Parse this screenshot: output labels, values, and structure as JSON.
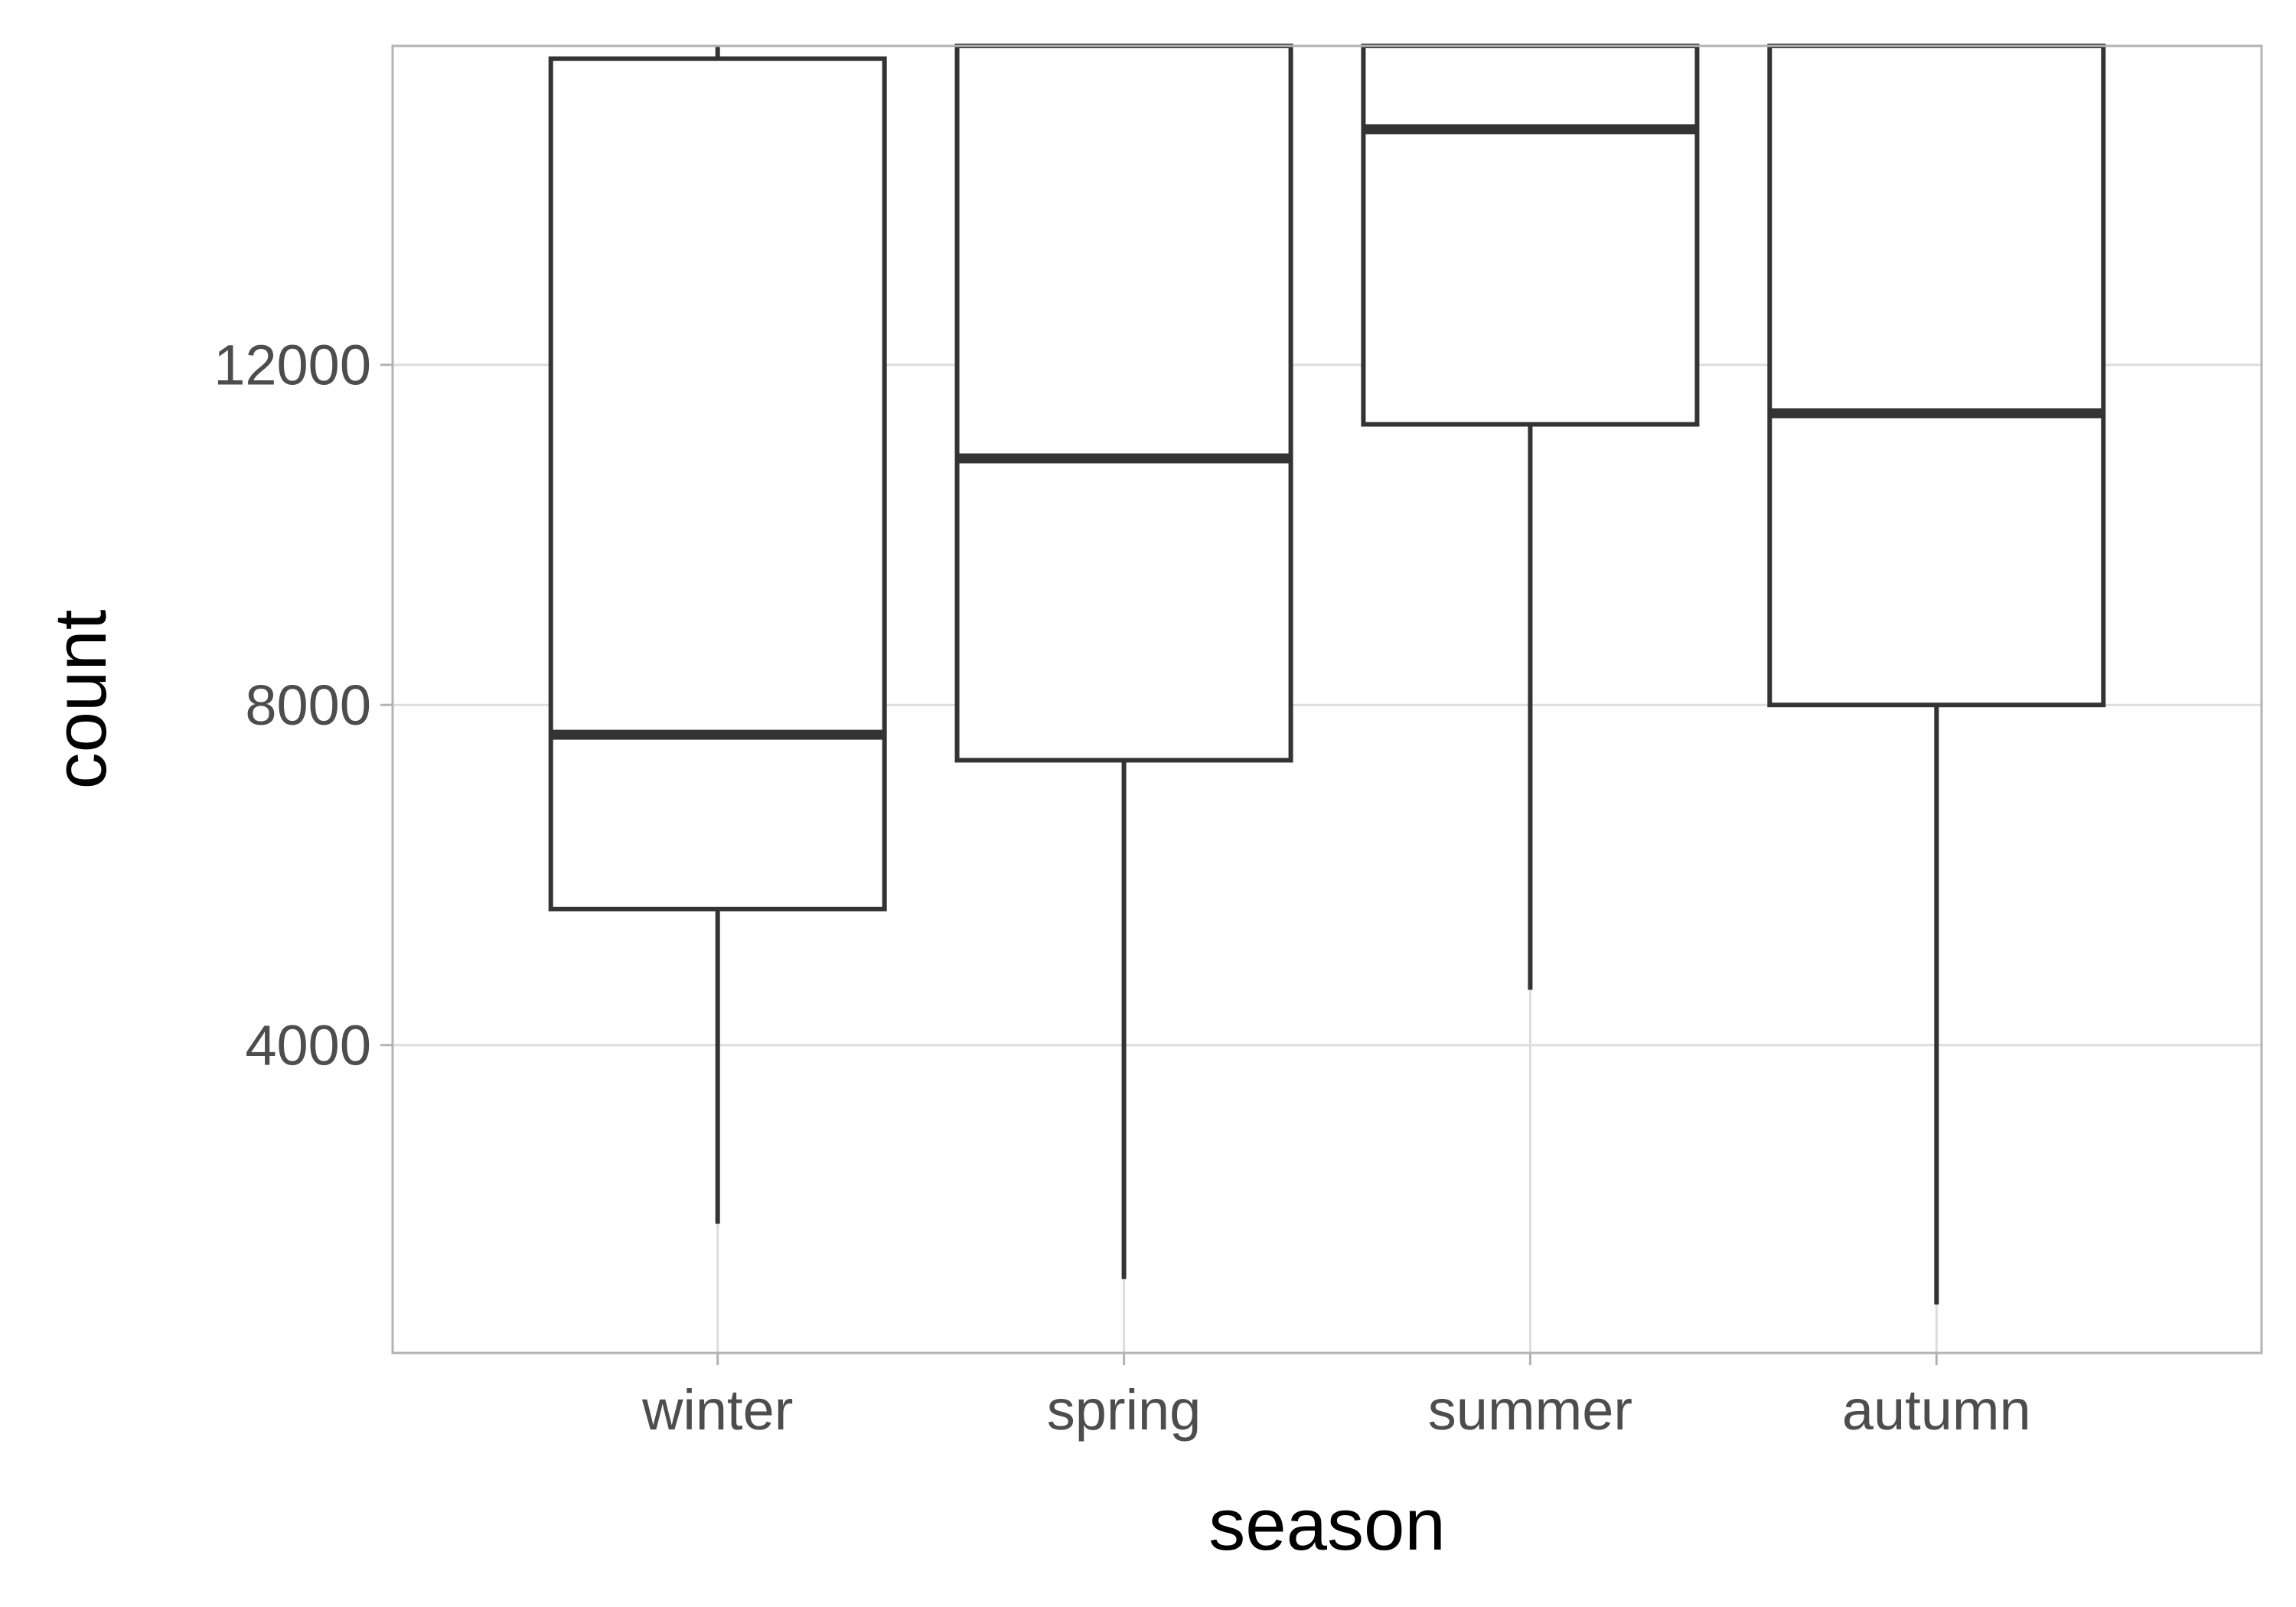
{
  "chart_data": {
    "type": "boxplot",
    "xlabel": "season",
    "ylabel": "count",
    "categories": [
      "winter",
      "spring",
      "summer",
      "autumn"
    ],
    "ylim": [
      380,
      15750
    ],
    "yticks": [
      4000,
      8000,
      12000
    ],
    "ytick_labels": [
      "4000",
      "8000",
      "12000"
    ],
    "grid": true,
    "legend": "none",
    "boxes": [
      {
        "category": "winter",
        "whisker_low": 1900,
        "q1": 5600,
        "median": 7650,
        "q3": 15600,
        "whisker_high": 15750
      },
      {
        "category": "spring",
        "whisker_low": 1250,
        "q1": 7350,
        "median": 10900,
        "q3": 15750,
        "whisker_high": 15750
      },
      {
        "category": "summer",
        "whisker_low": 4650,
        "q1": 11300,
        "median": 14770,
        "q3": 15750,
        "whisker_high": 15750
      },
      {
        "category": "autumn",
        "whisker_low": 950,
        "q1": 8000,
        "median": 11430,
        "q3": 15750,
        "whisker_high": 15750
      }
    ],
    "colors": {
      "box_stroke": "#333333",
      "box_fill": "#ffffff",
      "grid": "#dddddd",
      "panel_border": "#b3b3b3",
      "tick_text": "#4d4d4d",
      "axis_title": "#000000"
    }
  }
}
